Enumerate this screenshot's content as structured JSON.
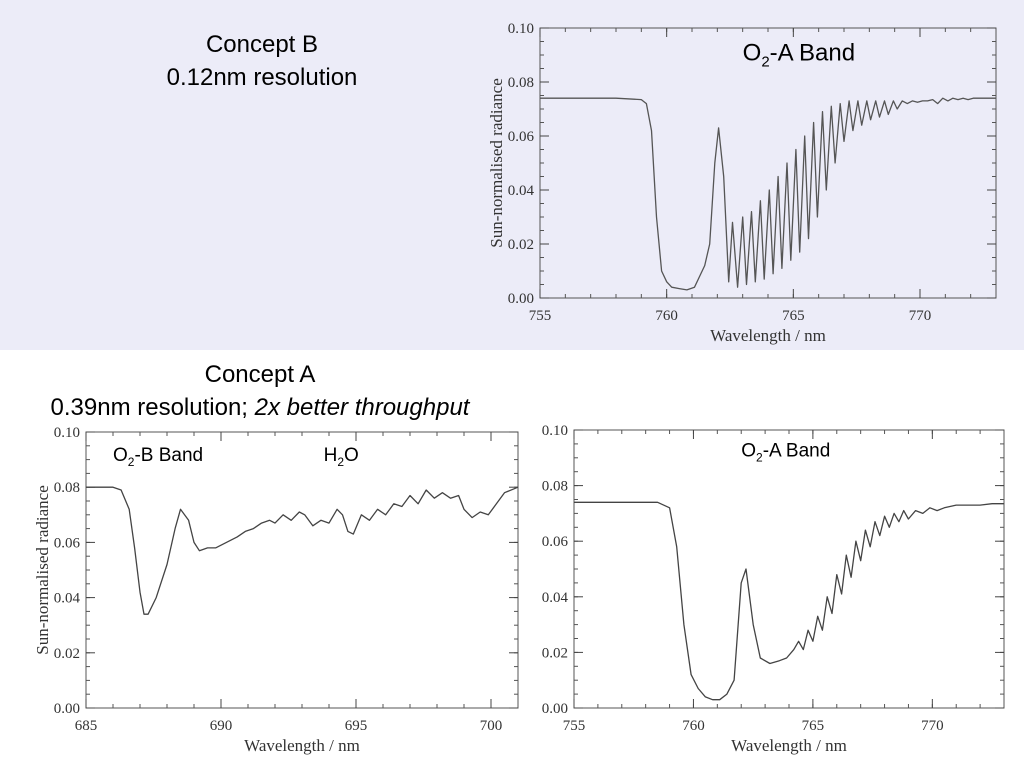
{
  "conceptB": {
    "title": "Concept B",
    "subtitle": "0.12nm resolution"
  },
  "conceptA": {
    "title": "Concept A",
    "subtitle_plain": "0.39nm resolution; ",
    "subtitle_italic": "2x better throughput"
  },
  "chart_data": [
    {
      "id": "b-o2a",
      "type": "line",
      "xlabel": "Wavelength / nm",
      "ylabel": "Sun-normalised radiance",
      "xlim": [
        755,
        773
      ],
      "ylim": [
        0,
        0.1
      ],
      "xticks": [
        755,
        760,
        765,
        770
      ],
      "xtick_labels": [
        "755",
        "760",
        "765",
        "770"
      ],
      "yticks": [
        0,
        0.02,
        0.04,
        0.06,
        0.08,
        0.1
      ],
      "ytick_labels": [
        "0.00",
        "0.02",
        "0.04",
        "0.06",
        "0.08",
        "0.10"
      ],
      "annotations": [
        {
          "parts": [
            [
              "O",
              "n"
            ],
            [
              "2",
              "sub"
            ],
            [
              "-A Band",
              "n"
            ]
          ],
          "x": 763.0,
          "y": 0.088
        }
      ],
      "series": [
        {
          "color": "#555555",
          "x": [
            755,
            756,
            757,
            758,
            759,
            759.2,
            759.4,
            759.6,
            759.8,
            760.0,
            760.2,
            760.5,
            760.8,
            761.1,
            761.3,
            761.5,
            761.7,
            761.9,
            762.05,
            762.25,
            762.45,
            762.6,
            762.8,
            763.0,
            763.15,
            763.35,
            763.5,
            763.7,
            763.85,
            764.05,
            764.2,
            764.4,
            764.55,
            764.75,
            764.9,
            765.1,
            765.25,
            765.45,
            765.6,
            765.8,
            765.95,
            766.15,
            766.3,
            766.5,
            766.65,
            766.85,
            767.0,
            767.2,
            767.35,
            767.55,
            767.7,
            767.9,
            768.05,
            768.25,
            768.4,
            768.6,
            768.75,
            768.95,
            769.1,
            769.3,
            769.5,
            769.7,
            769.9,
            770.1,
            770.3,
            770.5,
            770.7,
            770.9,
            771.1,
            771.3,
            771.5,
            771.7,
            771.9,
            772.1,
            772.3,
            772.5,
            772.7,
            773.0
          ],
          "y": [
            0.074,
            0.074,
            0.074,
            0.074,
            0.0735,
            0.072,
            0.062,
            0.03,
            0.01,
            0.006,
            0.004,
            0.0035,
            0.003,
            0.004,
            0.008,
            0.012,
            0.02,
            0.05,
            0.063,
            0.045,
            0.006,
            0.028,
            0.004,
            0.03,
            0.005,
            0.032,
            0.006,
            0.036,
            0.007,
            0.04,
            0.009,
            0.045,
            0.011,
            0.05,
            0.014,
            0.055,
            0.017,
            0.06,
            0.022,
            0.065,
            0.03,
            0.069,
            0.04,
            0.071,
            0.05,
            0.072,
            0.058,
            0.073,
            0.062,
            0.073,
            0.064,
            0.073,
            0.066,
            0.073,
            0.067,
            0.073,
            0.068,
            0.073,
            0.07,
            0.073,
            0.072,
            0.073,
            0.0725,
            0.073,
            0.073,
            0.0735,
            0.072,
            0.074,
            0.073,
            0.074,
            0.0735,
            0.074,
            0.0735,
            0.074,
            0.074,
            0.074,
            0.074,
            0.074
          ]
        }
      ]
    },
    {
      "id": "a-o2b",
      "type": "line",
      "xlabel": "Wavelength / nm",
      "ylabel": "Sun-normalised radiance",
      "xlim": [
        685,
        701
      ],
      "ylim": [
        0,
        0.1
      ],
      "xticks": [
        685,
        690,
        695,
        700
      ],
      "xtick_labels": [
        "685",
        "690",
        "695",
        "700"
      ],
      "yticks": [
        0,
        0.02,
        0.04,
        0.06,
        0.08,
        0.1
      ],
      "ytick_labels": [
        "0.00",
        "0.02",
        "0.04",
        "0.06",
        "0.08",
        "0.10"
      ],
      "annotations": [
        {
          "parts": [
            [
              "O",
              "n"
            ],
            [
              "2",
              "sub"
            ],
            [
              "-B Band",
              "n"
            ]
          ],
          "x": 686.0,
          "y": 0.0895
        },
        {
          "parts": [
            [
              "H",
              "n"
            ],
            [
              "2",
              "sub"
            ],
            [
              "O",
              "n"
            ]
          ],
          "x": 693.8,
          "y": 0.0895
        }
      ],
      "series": [
        {
          "color": "#444444",
          "x": [
            685,
            685.5,
            686,
            686.3,
            686.6,
            686.8,
            687.0,
            687.15,
            687.3,
            687.6,
            688.0,
            688.3,
            688.5,
            688.8,
            689.0,
            689.2,
            689.5,
            689.8,
            690.2,
            690.6,
            690.9,
            691.2,
            691.5,
            691.8,
            692.0,
            692.3,
            692.6,
            692.9,
            693.1,
            693.4,
            693.7,
            694.0,
            694.3,
            694.5,
            694.7,
            694.9,
            695.2,
            695.5,
            695.8,
            696.1,
            696.4,
            696.7,
            697.0,
            697.3,
            697.6,
            697.9,
            698.2,
            698.5,
            698.8,
            699.0,
            699.3,
            699.6,
            699.9,
            700.2,
            700.5,
            701.0
          ],
          "y": [
            0.08,
            0.08,
            0.08,
            0.079,
            0.072,
            0.058,
            0.042,
            0.034,
            0.034,
            0.04,
            0.052,
            0.065,
            0.072,
            0.068,
            0.06,
            0.057,
            0.058,
            0.058,
            0.06,
            0.062,
            0.064,
            0.065,
            0.067,
            0.068,
            0.067,
            0.07,
            0.068,
            0.071,
            0.07,
            0.066,
            0.068,
            0.067,
            0.072,
            0.07,
            0.064,
            0.063,
            0.07,
            0.068,
            0.072,
            0.07,
            0.074,
            0.073,
            0.077,
            0.074,
            0.079,
            0.076,
            0.078,
            0.076,
            0.077,
            0.072,
            0.069,
            0.071,
            0.07,
            0.074,
            0.078,
            0.08
          ]
        }
      ]
    },
    {
      "id": "a-o2a",
      "type": "line",
      "xlabel": "Wavelength / nm",
      "ylabel": "",
      "xlim": [
        755,
        773
      ],
      "ylim": [
        0,
        0.1
      ],
      "xticks": [
        755,
        760,
        765,
        770
      ],
      "xtick_labels": [
        "755",
        "760",
        "765",
        "770"
      ],
      "yticks": [
        0,
        0.02,
        0.04,
        0.06,
        0.08,
        0.1
      ],
      "ytick_labels": [
        "0.00",
        "0.02",
        "0.04",
        "0.06",
        "0.08",
        "0.10"
      ],
      "annotations": [
        {
          "parts": [
            [
              "O",
              "n"
            ],
            [
              "2",
              "sub"
            ],
            [
              "-A Band",
              "n"
            ]
          ],
          "x": 762.0,
          "y": 0.0905
        }
      ],
      "series": [
        {
          "color": "#444444",
          "x": [
            755,
            757,
            758.5,
            759.0,
            759.3,
            759.6,
            759.9,
            760.2,
            760.5,
            760.8,
            761.1,
            761.4,
            761.7,
            762.0,
            762.2,
            762.5,
            762.8,
            763.2,
            763.6,
            763.9,
            764.2,
            764.4,
            764.6,
            764.8,
            765.0,
            765.2,
            765.4,
            765.6,
            765.8,
            766.0,
            766.2,
            766.4,
            766.6,
            766.8,
            767.0,
            767.2,
            767.4,
            767.6,
            767.8,
            768.0,
            768.2,
            768.4,
            768.6,
            768.8,
            769.0,
            769.3,
            769.6,
            769.9,
            770.2,
            770.5,
            771.0,
            771.5,
            772.0,
            772.5,
            773.0
          ],
          "y": [
            0.074,
            0.074,
            0.074,
            0.072,
            0.058,
            0.03,
            0.012,
            0.007,
            0.004,
            0.003,
            0.003,
            0.005,
            0.01,
            0.045,
            0.05,
            0.03,
            0.018,
            0.016,
            0.017,
            0.018,
            0.021,
            0.024,
            0.021,
            0.028,
            0.024,
            0.033,
            0.028,
            0.04,
            0.034,
            0.048,
            0.041,
            0.055,
            0.047,
            0.06,
            0.053,
            0.064,
            0.058,
            0.067,
            0.062,
            0.069,
            0.065,
            0.07,
            0.067,
            0.071,
            0.068,
            0.071,
            0.07,
            0.072,
            0.071,
            0.072,
            0.073,
            0.073,
            0.073,
            0.0735,
            0.0735
          ]
        }
      ]
    }
  ]
}
